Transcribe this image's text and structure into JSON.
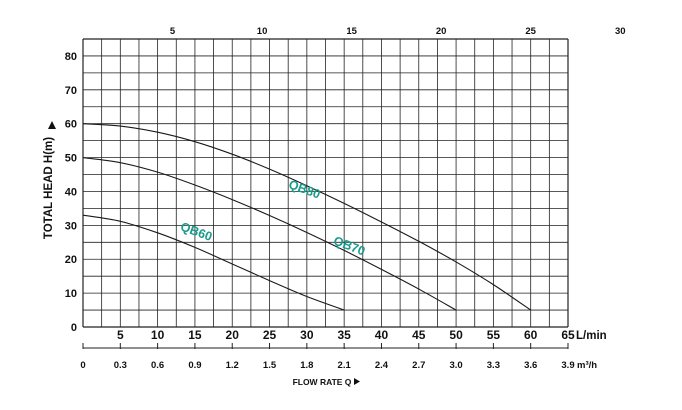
{
  "chart_data": {
    "type": "line",
    "title": "",
    "ylabel": "TOTAL HEAD H(m)",
    "xlabel": "FLOW RATE Q",
    "x_unit_lmin": "L/min",
    "x_unit_m3h": "m³/h",
    "ylim": [
      0,
      85
    ],
    "xlim_lmin": [
      0,
      65
    ],
    "y_ticks": [
      "0",
      "10",
      "20",
      "30",
      "40",
      "50",
      "60",
      "70",
      "80"
    ],
    "x_ticks_lmin": [
      "5",
      "10",
      "15",
      "20",
      "25",
      "30",
      "35",
      "40",
      "45",
      "50",
      "55",
      "60",
      "65"
    ],
    "x_ticks_m3h": [
      "0",
      "0.3",
      "0.6",
      "0.9",
      "1.2",
      "1.5",
      "1.8",
      "2.1",
      "2.4",
      "2.7",
      "3.0",
      "3.3",
      "3.6",
      "3.9"
    ],
    "top_ticks": [
      "5",
      "10",
      "15",
      "20",
      "25",
      "30"
    ],
    "grid": true,
    "series": [
      {
        "name": "QB60",
        "label_color": "#1a9a8a",
        "x": [
          0,
          5,
          10,
          15,
          20,
          25,
          30,
          35
        ],
        "y": [
          33,
          31.2,
          27.8,
          23.5,
          18.6,
          13.7,
          9,
          5
        ]
      },
      {
        "name": "QB70",
        "label_color": "#1a9a8a",
        "x": [
          0,
          5,
          10,
          15,
          20,
          25,
          30,
          35,
          40,
          45,
          50
        ],
        "y": [
          50,
          48.5,
          45.7,
          41.9,
          37.6,
          32.9,
          27.9,
          22.6,
          17.0,
          11.2,
          5
        ]
      },
      {
        "name": "QB80",
        "label_color": "#1a9a8a",
        "x": [
          0,
          5,
          10,
          15,
          20,
          25,
          30,
          35,
          40,
          45,
          50,
          55,
          60
        ],
        "y": [
          60,
          59.3,
          57.5,
          54.7,
          51.0,
          46.6,
          41.7,
          36.5,
          31.0,
          25.3,
          19.2,
          12.5,
          5
        ]
      }
    ]
  }
}
